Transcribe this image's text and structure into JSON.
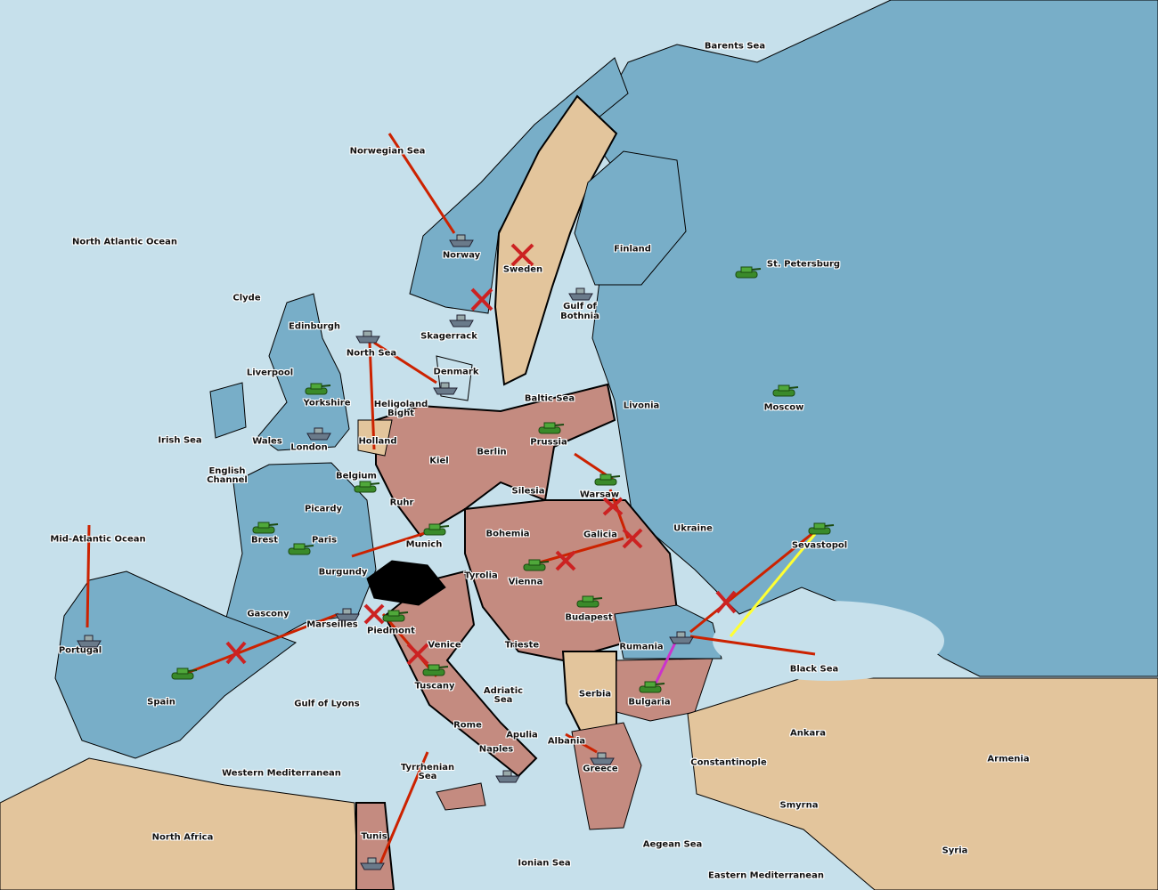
{
  "colors": {
    "sea": "#c6e0eb",
    "england_france_russia": "#78aec8",
    "germany_austria_italy": "#c48b80",
    "neutral": "#e3c59c",
    "impassable": "#000000",
    "move_arrow": "#cc2200",
    "support_arrow": "#ffff33",
    "convoy_arrow": "#cc33cc"
  },
  "labels": {
    "barents": "Barents Sea",
    "norwegian": "Norwegian Sea",
    "nao": "North Atlantic Ocean",
    "norway": "Norway",
    "sweden": "Sweden",
    "finland": "Finland",
    "stp": "St. Petersburg",
    "gob": "Gulf of Bothnia",
    "skag": "Skagerrack",
    "clyde": "Clyde",
    "edinburgh": "Edinburgh",
    "northsea": "North Sea",
    "denmark": "Denmark",
    "liverpool": "Liverpool",
    "yorkshire": "Yorkshire",
    "baltic": "Baltic Sea",
    "livonia": "Livonia",
    "moscow": "Moscow",
    "helgoland": "Heligoland Bight",
    "irish": "Irish Sea",
    "wales": "Wales",
    "london": "London",
    "holland": "Holland",
    "kiel": "Kiel",
    "berlin": "Berlin",
    "prussia": "Prussia",
    "english": "English Channel",
    "belgium": "Belgium",
    "ruhr": "Ruhr",
    "silesia": "Silesia",
    "warsaw": "Warsaw",
    "picardy": "Picardy",
    "brest": "Brest",
    "paris": "Paris",
    "mao": "Mid-Atlantic Ocean",
    "munich": "Munich",
    "bohemia": "Bohemia",
    "galicia": "Galicia",
    "ukraine": "Ukraine",
    "sevastopol": "Sevastopol",
    "burgundy": "Burgundy",
    "tyrolia": "Tyrolia",
    "vienna": "Vienna",
    "gascony": "Gascony",
    "budapest": "Budapest",
    "marseilles": "Marseilles",
    "piedmont": "Piedmont",
    "portugal": "Portugal",
    "venice": "Venice",
    "trieste": "Trieste",
    "rumania": "Rumania",
    "blacksea": "Black Sea",
    "spain": "Spain",
    "tuscany": "Tuscany",
    "serbia": "Serbia",
    "bulgaria": "Bulgaria",
    "adriatic": "Adriatic Sea",
    "gol": "Gulf of Lyons",
    "rome": "Rome",
    "apulia": "Apulia",
    "ankara": "Ankara",
    "armenia": "Armenia",
    "albania": "Albania",
    "constantinople": "Constantinople",
    "naples": "Naples",
    "wmed": "Western Mediterranean",
    "tyrrhenian": "Tyrrhenian Sea",
    "greece": "Greece",
    "smyrna": "Smyrna",
    "northafrica": "North Africa",
    "tunis": "Tunis",
    "aegean": "Aegean Sea",
    "syria": "Syria",
    "ionian": "Ionian Sea",
    "emed": "Eastern Mediterranean"
  },
  "units": [
    {
      "type": "fleet",
      "province": "Norway"
    },
    {
      "type": "fleet",
      "province": "Gulf of Bothnia"
    },
    {
      "type": "fleet",
      "province": "Skagerrack"
    },
    {
      "type": "fleet",
      "province": "North Sea"
    },
    {
      "type": "fleet",
      "province": "Denmark"
    },
    {
      "type": "army",
      "province": "St. Petersburg"
    },
    {
      "type": "army",
      "province": "Moscow"
    },
    {
      "type": "army",
      "province": "Yorkshire"
    },
    {
      "type": "fleet",
      "province": "London"
    },
    {
      "type": "army",
      "province": "Prussia"
    },
    {
      "type": "army",
      "province": "Warsaw"
    },
    {
      "type": "army",
      "province": "Ruhr"
    },
    {
      "type": "army",
      "province": "Brest"
    },
    {
      "type": "army",
      "province": "Paris"
    },
    {
      "type": "army",
      "province": "Munich"
    },
    {
      "type": "army",
      "province": "Sevastopol"
    },
    {
      "type": "army",
      "province": "Vienna"
    },
    {
      "type": "army",
      "province": "Budapest"
    },
    {
      "type": "fleet",
      "province": "Marseilles"
    },
    {
      "type": "army",
      "province": "Piedmont"
    },
    {
      "type": "fleet",
      "province": "Portugal"
    },
    {
      "type": "army",
      "province": "Spain"
    },
    {
      "type": "army",
      "province": "Tuscany"
    },
    {
      "type": "fleet",
      "province": "Rumania"
    },
    {
      "type": "army",
      "province": "Bulgaria"
    },
    {
      "type": "fleet",
      "province": "Naples"
    },
    {
      "type": "fleet",
      "province": "Greece"
    },
    {
      "type": "fleet",
      "province": "Tunis"
    }
  ]
}
